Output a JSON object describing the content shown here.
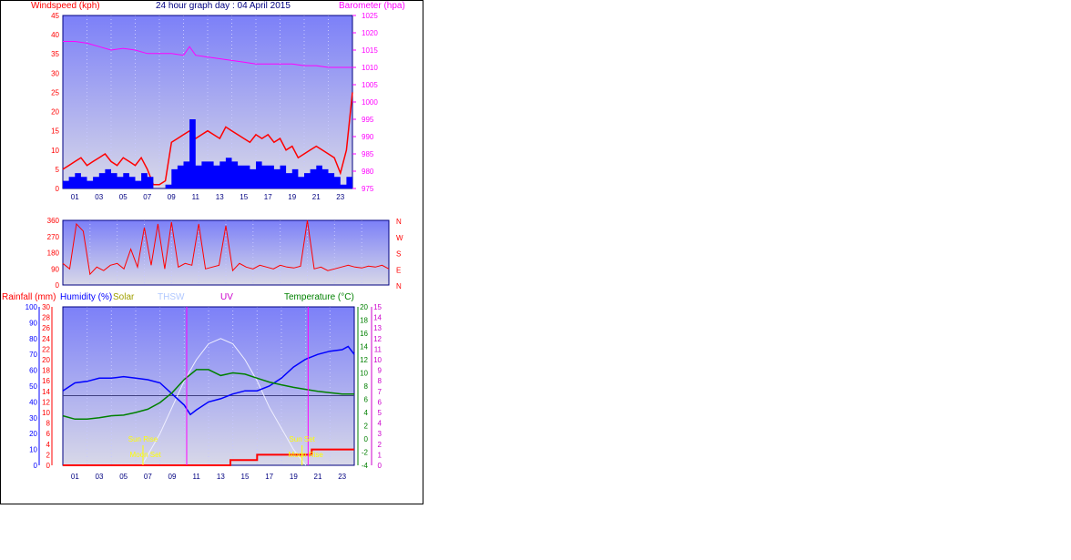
{
  "title": "24 hour graph day : 04 April 2015",
  "colors": {
    "wind": "#ff0000",
    "gust_fill": "#0000ff",
    "baro": "#ff00ff",
    "humidity": "#0000ff",
    "temp": "#008000",
    "rain": "#ff0000",
    "solar": "#cccc00",
    "thsw": "#aac8ff",
    "uv": "#cc00cc",
    "sun": "#ffff00",
    "grid_bg_top": "#7c80f8",
    "grid_bg_bottom": "#d8d8e8",
    "axis": "#000080"
  },
  "chart_data": [
    {
      "type": "line",
      "name": "wind",
      "ylabel_left": "Windspeed (kph)",
      "ylabel_right": "Barometer (hpa)",
      "x_ticks": [
        "01",
        "03",
        "05",
        "07",
        "09",
        "11",
        "13",
        "15",
        "17",
        "19",
        "21",
        "23"
      ],
      "ylim_left": [
        0,
        45
      ],
      "yticks_left": [
        0,
        5,
        10,
        15,
        20,
        25,
        30,
        35,
        40,
        45
      ],
      "ylim_right": [
        975,
        1025
      ],
      "yticks_right": [
        975,
        980,
        985,
        990,
        995,
        1000,
        1005,
        1010,
        1015,
        1020,
        1025
      ],
      "series": [
        {
          "name": "windspeed",
          "x": [
            0,
            0.5,
            1,
            1.5,
            2,
            2.5,
            3,
            3.5,
            4,
            4.5,
            5,
            5.5,
            6,
            6.5,
            7,
            7.5,
            8,
            8.5,
            9,
            9.5,
            10,
            10.5,
            11,
            11.5,
            12,
            12.5,
            13,
            13.5,
            14,
            14.5,
            15,
            15.5,
            16,
            16.5,
            17,
            17.5,
            18,
            18.5,
            19,
            19.5,
            20,
            20.5,
            21,
            21.5,
            22,
            22.5,
            23,
            23.5,
            24
          ],
          "y": [
            5,
            6,
            7,
            8,
            6,
            7,
            8,
            9,
            7,
            6,
            8,
            7,
            6,
            8,
            5,
            1,
            1,
            2,
            12,
            13,
            14,
            15,
            13,
            14,
            15,
            14,
            13,
            16,
            15,
            14,
            13,
            12,
            14,
            13,
            14,
            12,
            13,
            10,
            11,
            8,
            9,
            10,
            11,
            10,
            9,
            8,
            4,
            10,
            25
          ]
        },
        {
          "name": "gust",
          "x": [
            0,
            0.5,
            1,
            1.5,
            2,
            2.5,
            3,
            3.5,
            4,
            4.5,
            5,
            5.5,
            6,
            6.5,
            7,
            7.5,
            8,
            8.5,
            9,
            9.5,
            10,
            10.5,
            11,
            11.5,
            12,
            12.5,
            13,
            13.5,
            14,
            14.5,
            15,
            15.5,
            16,
            16.5,
            17,
            17.5,
            18,
            18.5,
            19,
            19.5,
            20,
            20.5,
            21,
            21.5,
            22,
            22.5,
            23,
            23.5,
            24
          ],
          "y": [
            2,
            3,
            4,
            3,
            2,
            3,
            4,
            5,
            4,
            3,
            4,
            3,
            2,
            4,
            3,
            0,
            0,
            1,
            5,
            6,
            7,
            18,
            6,
            7,
            7,
            6,
            7,
            8,
            7,
            6,
            6,
            5,
            7,
            6,
            6,
            5,
            6,
            4,
            5,
            3,
            4,
            5,
            6,
            5,
            4,
            3,
            1,
            3,
            11
          ]
        },
        {
          "name": "barometer",
          "x": [
            0,
            1,
            2,
            3,
            4,
            5,
            6,
            7,
            8,
            9,
            10,
            10.5,
            11,
            12,
            13,
            14,
            15,
            16,
            17,
            18,
            19,
            20,
            21,
            22,
            23,
            24
          ],
          "y": [
            1017.5,
            1017.5,
            1017,
            1016,
            1015,
            1015.5,
            1015,
            1014,
            1014,
            1014,
            1013.5,
            1016,
            1013.5,
            1013,
            1012.5,
            1012,
            1011.5,
            1011,
            1011,
            1011,
            1011,
            1010.5,
            1010.5,
            1010,
            1010,
            1010
          ]
        }
      ]
    },
    {
      "type": "line",
      "name": "wind-direction",
      "yticks": [
        0,
        90,
        180,
        270,
        360
      ],
      "ylim": [
        0,
        360
      ],
      "compass_labels": [
        "N",
        "W",
        "S",
        "E",
        "N"
      ],
      "series": [
        {
          "name": "direction",
          "x": [
            0,
            0.5,
            1,
            1.5,
            2,
            2.5,
            3,
            3.5,
            4,
            4.5,
            5,
            5.5,
            6,
            6.5,
            7,
            7.5,
            8,
            8.5,
            9,
            9.5,
            10,
            10.5,
            11,
            11.5,
            12,
            12.5,
            13,
            13.5,
            14,
            14.5,
            15,
            15.5,
            16,
            16.5,
            17,
            17.5,
            18,
            18.5,
            19,
            19.5,
            20,
            20.5,
            21,
            21.5,
            22,
            22.5,
            23,
            23.5,
            24
          ],
          "y": [
            120,
            90,
            340,
            300,
            60,
            100,
            80,
            110,
            120,
            90,
            200,
            100,
            320,
            110,
            340,
            90,
            350,
            100,
            120,
            110,
            340,
            90,
            100,
            110,
            330,
            80,
            120,
            100,
            90,
            110,
            100,
            90,
            110,
            100,
            95,
            105,
            360,
            90,
            100,
            80,
            90,
            100,
            110,
            100,
            95,
            105,
            100,
            110,
            90
          ]
        }
      ]
    },
    {
      "type": "line",
      "name": "rain-humidity-temp",
      "labels": {
        "rainfall": "Rainfall (mm)",
        "humidity": "Humidity (%)",
        "solar": "Solar",
        "thsw": "THSW",
        "uv": "UV",
        "temperature": "Temperature (°C)"
      },
      "yticks_rain": [
        0,
        2,
        4,
        6,
        8,
        10,
        12,
        14,
        16,
        18,
        20,
        22,
        24,
        26,
        28,
        30
      ],
      "yticks_humidity": [
        0,
        10,
        20,
        30,
        40,
        50,
        60,
        70,
        80,
        90,
        100
      ],
      "yticks_temp": [
        -4,
        -2,
        0,
        2,
        4,
        6,
        8,
        10,
        12,
        14,
        16,
        18,
        20
      ],
      "yticks_uv": [
        0,
        1,
        2,
        3,
        4,
        5,
        6,
        7,
        8,
        9,
        10,
        11,
        12,
        13,
        14,
        15
      ],
      "annotations": [
        "Sun Rise",
        "Moon Set",
        "Sun Set",
        "Moon Rise"
      ],
      "series": [
        {
          "name": "humidity",
          "x": [
            0,
            1,
            2,
            3,
            4,
            5,
            6,
            7,
            8,
            9,
            10,
            10.5,
            11,
            12,
            13,
            14,
            15,
            16,
            17,
            18,
            19,
            20,
            21,
            22,
            23,
            23.5,
            24
          ],
          "y": [
            47,
            52,
            53,
            55,
            55,
            56,
            55,
            54,
            52,
            45,
            38,
            32,
            35,
            40,
            42,
            45,
            47,
            47,
            50,
            55,
            62,
            67,
            70,
            72,
            73,
            75,
            70
          ]
        },
        {
          "name": "temperature",
          "x": [
            0,
            1,
            2,
            3,
            4,
            5,
            6,
            7,
            8,
            9,
            10,
            11,
            12,
            13,
            14,
            15,
            16,
            17,
            18,
            19,
            20,
            21,
            22,
            23,
            24
          ],
          "y": [
            3.5,
            3.0,
            3.0,
            3.2,
            3.5,
            3.6,
            4.0,
            4.5,
            5.5,
            7.0,
            9.0,
            10.5,
            10.5,
            9.6,
            10.0,
            9.8,
            9.2,
            8.6,
            8.2,
            7.8,
            7.5,
            7.2,
            7.0,
            6.8,
            6.8
          ]
        },
        {
          "name": "rainfall",
          "x": [
            0,
            13.8,
            13.8,
            16,
            16,
            20.5,
            20.5,
            24
          ],
          "y": [
            0,
            0,
            1,
            1,
            2,
            2,
            3,
            3
          ]
        },
        {
          "name": "thsw",
          "x": [
            6.5,
            8,
            9,
            10,
            11,
            12,
            13,
            14,
            15,
            16,
            17,
            18,
            19,
            20
          ],
          "y": [
            0,
            6,
            11,
            16,
            20,
            23,
            24,
            23,
            20,
            16,
            11,
            7,
            3,
            0
          ]
        }
      ],
      "markers": {
        "uv_lines_x": [
          10.2,
          20.2
        ],
        "sun_rise_x": 6.6,
        "sun_set_x": 19.7,
        "moon_set_x": 6.8,
        "moon_rise_x": 20.0
      }
    }
  ]
}
